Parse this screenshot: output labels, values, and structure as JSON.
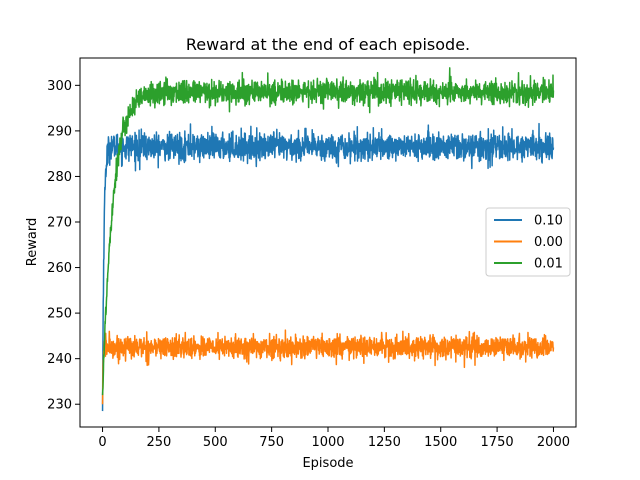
{
  "chart_data": {
    "type": "line",
    "title": "Reward at the end of each episode.",
    "xlabel": "Episode",
    "ylabel": "Reward",
    "xlim": [
      -100,
      2100
    ],
    "ylim": [
      225,
      306
    ],
    "xticks": [
      0,
      250,
      500,
      750,
      1000,
      1250,
      1500,
      1750,
      2000
    ],
    "yticks": [
      230,
      240,
      250,
      260,
      270,
      280,
      290,
      300
    ],
    "grid": false,
    "legend_position": "center-right",
    "series": [
      {
        "name": "0.10",
        "color": "#1f77b4",
        "start": 228.5,
        "plateau": 286.5,
        "tau": 6,
        "noise": 1.5,
        "spikes": [
          {
            "x": 390,
            "y": 291.5
          },
          {
            "x": 165,
            "y": 281.5
          }
        ]
      },
      {
        "name": "0.00",
        "color": "#ff7f0e",
        "start": 230,
        "plateau": 242.5,
        "tau": 2,
        "noise": 1.2,
        "spikes": [
          {
            "x": 30,
            "y": 246
          },
          {
            "x": 1475,
            "y": 238.5
          }
        ]
      },
      {
        "name": "0.01",
        "color": "#2ca02c",
        "start": 232,
        "plateau": 298.5,
        "tau": 45,
        "noise": 1.3,
        "spikes": [
          {
            "x": 620,
            "y": 302.8
          },
          {
            "x": 1220,
            "y": 302.8
          }
        ]
      }
    ],
    "x_range": [
      0,
      2000
    ]
  }
}
